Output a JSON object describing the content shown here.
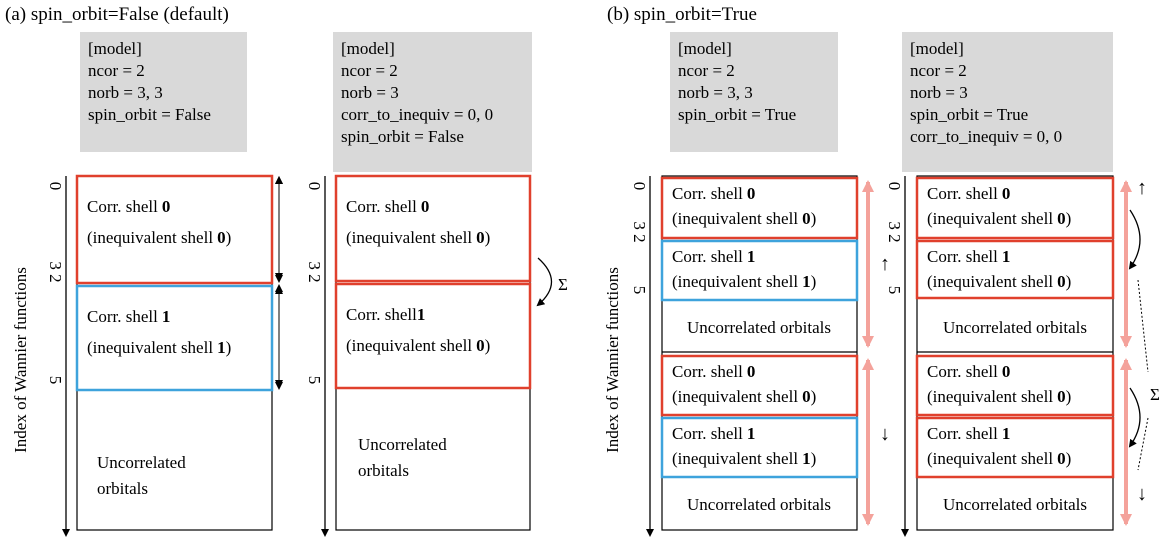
{
  "panels": [
    {
      "title": "(a) spin_orbit=False (default)",
      "axis_label": "Index of Wannier functions",
      "columns": [
        {
          "model": [
            "[model]",
            "ncor = 2",
            "norb = 3, 3",
            "spin_orbit = False"
          ],
          "ticks": [
            "0",
            "3 2",
            "5"
          ],
          "shells": [
            {
              "label": "Corr. shell",
              "index": "0",
              "inequiv": "(inequivalent shell",
              "inequiv_index": "0",
              "close": ")"
            },
            {
              "label": "Corr. shell",
              "index": "1",
              "inequiv": "(inequivalent shell",
              "inequiv_index": "1",
              "close": ")"
            }
          ],
          "uncorrelated": [
            "Uncorrelated",
            "orbitals"
          ]
        },
        {
          "model": [
            "[model]",
            "ncor = 2",
            "norb = 3",
            "corr_to_inequiv = 0, 0",
            "spin_orbit = False"
          ],
          "ticks": [
            "0",
            "3 2",
            "5"
          ],
          "shells": [
            {
              "label": "Corr. shell",
              "index": "0",
              "inequiv": "(inequivalent shell",
              "inequiv_index": "0",
              "close": ")"
            },
            {
              "label": "Corr. shell",
              "index": "1",
              "inequiv": "(inequivalent shell",
              "inequiv_index": "0",
              "close": ")"
            }
          ],
          "uncorrelated": [
            "Uncorrelated",
            "orbitals"
          ],
          "sigma": "Σ"
        }
      ]
    },
    {
      "title": "(b) spin_orbit=True",
      "axis_label": "Index of Wannier functions",
      "columns": [
        {
          "model": [
            "[model]",
            "ncor = 2",
            "norb = 3, 3",
            "spin_orbit = True"
          ],
          "ticks": [
            "0",
            "3 2",
            "5"
          ],
          "shells": [
            {
              "label": "Corr. shell",
              "index": "0",
              "inequiv": "(inequivalent shell",
              "inequiv_index": "0",
              "close": ")"
            },
            {
              "label": "Corr. shell",
              "index": "1",
              "inequiv": "(inequivalent shell",
              "inequiv_index": "1",
              "close": ")"
            },
            {
              "label": "Corr. shell",
              "index": "0",
              "inequiv": "(inequivalent shell",
              "inequiv_index": "0",
              "close": ")"
            },
            {
              "label": "Corr. shell",
              "index": "1",
              "inequiv": "(inequivalent shell",
              "inequiv_index": "1",
              "close": ")"
            }
          ],
          "uncorrelated": [
            "Uncorrelated orbitals",
            "Uncorrelated orbitals"
          ],
          "spins": [
            "↑",
            "↓"
          ]
        },
        {
          "model": [
            "[model]",
            "ncor = 2",
            "norb = 3",
            "spin_orbit = True",
            "corr_to_inequiv = 0, 0"
          ],
          "ticks": [
            "0",
            "3 2",
            "5"
          ],
          "shells": [
            {
              "label": "Corr. shell",
              "index": "0",
              "inequiv": "(inequivalent shell",
              "inequiv_index": "0",
              "close": ")"
            },
            {
              "label": "Corr. shell",
              "index": "1",
              "inequiv": "(inequivalent shell",
              "inequiv_index": "0",
              "close": ")"
            },
            {
              "label": "Corr. shell",
              "index": "0",
              "inequiv": "(inequivalent shell",
              "inequiv_index": "0",
              "close": ")"
            },
            {
              "label": "Corr. shell",
              "index": "1",
              "inequiv": "(inequivalent shell",
              "inequiv_index": "0",
              "close": ")"
            }
          ],
          "uncorrelated": [
            "Uncorrelated orbitals",
            "Uncorrelated orbitals"
          ],
          "spins": [
            "↑",
            "↓"
          ],
          "sigma": "Σ"
        }
      ]
    }
  ]
}
